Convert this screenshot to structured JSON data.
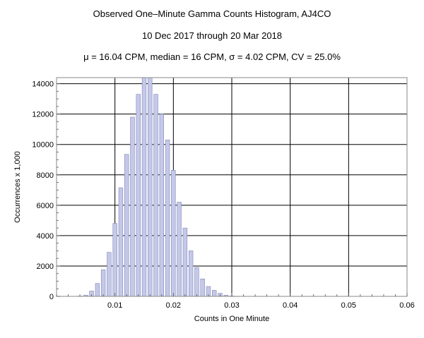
{
  "chart_data": {
    "type": "bar",
    "title": "Observed One–Minute Gamma Counts Histogram, AJ4CO",
    "subtitle": "10 Dec 2017 through 20 Mar 2018",
    "stats_line": "μ = 16.04 CPM,   median = 16 CPM,   σ = 4.02 CPM,   CV = 25.0%",
    "xlabel": "Counts in One Minute",
    "ylabel": "Occurrences x 1,000",
    "xlim": [
      0,
      0.06
    ],
    "ylim": [
      0,
      14400
    ],
    "x_ticks": [
      0.01,
      0.02,
      0.03,
      0.04,
      0.05,
      0.06
    ],
    "x_tick_labels": [
      "0.01",
      "0.02",
      "0.03",
      "0.04",
      "0.05",
      "0.06"
    ],
    "y_ticks": [
      0,
      2000,
      4000,
      6000,
      8000,
      10000,
      12000,
      14000
    ],
    "y_tick_labels": [
      "0",
      "2000",
      "4000",
      "6000",
      "8000",
      "10000",
      "12000",
      "14000"
    ],
    "grid": true,
    "bar_width": 0.0007,
    "x": [
      0.004,
      0.005,
      0.006,
      0.007,
      0.008,
      0.009,
      0.01,
      0.011,
      0.012,
      0.013,
      0.014,
      0.015,
      0.016,
      0.017,
      0.018,
      0.019,
      0.02,
      0.021,
      0.022,
      0.023,
      0.024,
      0.025,
      0.026,
      0.027,
      0.028,
      0.029,
      0.03,
      0.031
    ],
    "values": [
      20,
      80,
      350,
      850,
      1750,
      2900,
      4800,
      7150,
      9350,
      11800,
      13300,
      14400,
      14400,
      13300,
      12000,
      10300,
      8300,
      6200,
      4500,
      3000,
      1900,
      1150,
      650,
      400,
      200,
      80,
      30,
      10
    ],
    "colors": {
      "bar_fill": "#c5c8e8",
      "bar_stroke": "#8088b8",
      "grid": "#000000",
      "frame": "#8a8a8a"
    }
  }
}
